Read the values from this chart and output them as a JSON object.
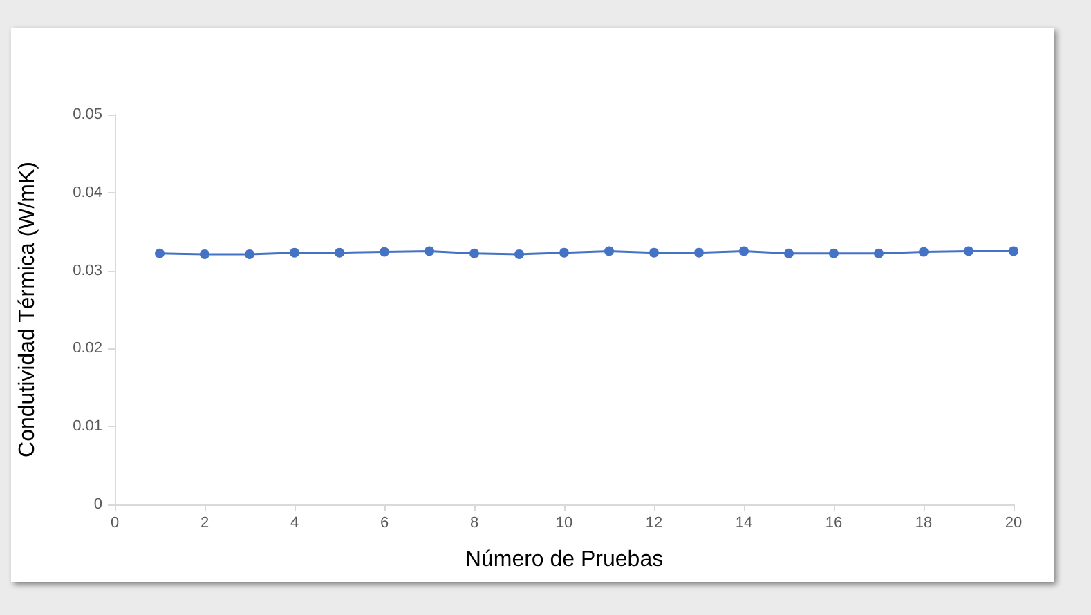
{
  "chart_data": {
    "type": "line",
    "xlabel": "Número de Pruebas",
    "ylabel": "Condutividad Térmica (W/mK)",
    "x": [
      1,
      2,
      3,
      4,
      5,
      6,
      7,
      8,
      9,
      10,
      11,
      12,
      13,
      14,
      15,
      16,
      17,
      18,
      19,
      20
    ],
    "series": [
      {
        "color": "#4472c4",
        "values": [
          0.0322,
          0.0321,
          0.0321,
          0.0323,
          0.0323,
          0.0324,
          0.0325,
          0.0322,
          0.0321,
          0.0323,
          0.0325,
          0.0323,
          0.0323,
          0.0325,
          0.0322,
          0.0322,
          0.0322,
          0.0324,
          0.0325,
          0.0325
        ]
      }
    ],
    "xlim": [
      0,
      20
    ],
    "xticks": [
      0,
      2,
      4,
      6,
      8,
      10,
      12,
      14,
      16,
      18,
      20
    ],
    "ylim": [
      0,
      0.05
    ],
    "yticks": [
      0,
      0.01,
      0.02,
      0.03,
      0.04,
      0.05
    ],
    "marker": "circle",
    "line_style": "solid"
  }
}
